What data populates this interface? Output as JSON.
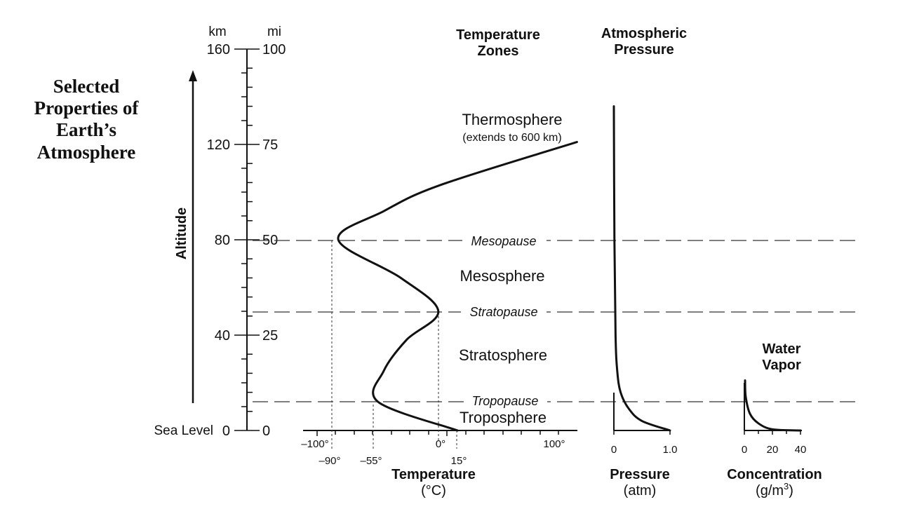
{
  "title_lines": [
    "Selected",
    "Properties of",
    "Earth’s",
    "Atmosphere"
  ],
  "altitude_axis": {
    "label": "Altitude",
    "km_unit": "km",
    "mi_unit": "mi",
    "sea_level_label": "Sea Level",
    "km_ticks": [
      {
        "label": "0",
        "km": 0
      },
      {
        "label": "40",
        "km": 40
      },
      {
        "label": "80",
        "km": 80
      },
      {
        "label": "120",
        "km": 120
      },
      {
        "label": "160",
        "km": 160
      }
    ],
    "mi_ticks": [
      {
        "label": "0",
        "mi": 0
      },
      {
        "label": "25",
        "mi": 25
      },
      {
        "label": "50",
        "mi": 50
      },
      {
        "label": "75",
        "mi": 75
      },
      {
        "label": "100",
        "mi": 100
      }
    ]
  },
  "temperature_zones": {
    "heading_lines": [
      "Temperature",
      "Zones"
    ],
    "zones": [
      {
        "name": "Thermosphere",
        "note": "(extends to 600 km)"
      },
      {
        "name": "Mesosphere"
      },
      {
        "name": "Stratosphere"
      },
      {
        "name": "Troposphere"
      }
    ],
    "boundaries": [
      {
        "name": "Mesopause",
        "km": 80
      },
      {
        "name": "Stratopause",
        "km": 50
      },
      {
        "name": "Tropopause",
        "km": 12
      }
    ]
  },
  "temperature_axis": {
    "title": "Temperature",
    "unit": "(°C)",
    "top_ticks": [
      "–100°",
      "0°",
      "100°"
    ],
    "bottom_ticks": [
      "–90°",
      "–55°",
      "15°"
    ]
  },
  "pressure": {
    "heading_lines": [
      "Atmospheric",
      "Pressure"
    ],
    "title": "Pressure",
    "unit": "(atm)",
    "ticks": [
      "0",
      "1.0"
    ]
  },
  "water_vapor": {
    "heading_lines": [
      "Water",
      "Vapor"
    ],
    "title": "Concentration",
    "unit_base": "(g/m",
    "unit_sup": "3",
    "unit_close": ")",
    "ticks": [
      "0",
      "20",
      "40"
    ]
  },
  "chart_data": [
    {
      "type": "line",
      "name": "temperature",
      "x_unit": "°C",
      "y_unit": "km",
      "points": [
        {
          "x": 15,
          "y": 0
        },
        {
          "x": -55,
          "y": 12
        },
        {
          "x": -50,
          "y": 25
        },
        {
          "x": -30,
          "y": 38
        },
        {
          "x": -2,
          "y": 50
        },
        {
          "x": -35,
          "y": 64
        },
        {
          "x": -90,
          "y": 80
        },
        {
          "x": -50,
          "y": 92
        },
        {
          "x": 0,
          "y": 103
        },
        {
          "x": 120,
          "y": 121
        }
      ],
      "xlim": [
        -120,
        122
      ],
      "ylim": [
        0,
        160
      ]
    },
    {
      "type": "line",
      "name": "pressure",
      "x_unit": "atm",
      "y_unit": "km",
      "points": [
        {
          "x": 1.0,
          "y": 0
        },
        {
          "x": 0.5,
          "y": 4
        },
        {
          "x": 0.27,
          "y": 9
        },
        {
          "x": 0.12,
          "y": 16
        },
        {
          "x": 0.06,
          "y": 25
        },
        {
          "x": 0.03,
          "y": 40
        },
        {
          "x": 0.01,
          "y": 80
        },
        {
          "x": 0.0,
          "y": 136
        }
      ],
      "xlim": [
        0,
        1.0
      ]
    },
    {
      "type": "line",
      "name": "water vapor",
      "x_unit": "g/m3",
      "y_unit": "km",
      "points": [
        {
          "x": 40,
          "y": 0
        },
        {
          "x": 20,
          "y": 0.5
        },
        {
          "x": 10,
          "y": 3
        },
        {
          "x": 4,
          "y": 7
        },
        {
          "x": 1,
          "y": 14
        },
        {
          "x": 0.5,
          "y": 21
        }
      ],
      "xlim": [
        0,
        40
      ]
    }
  ]
}
